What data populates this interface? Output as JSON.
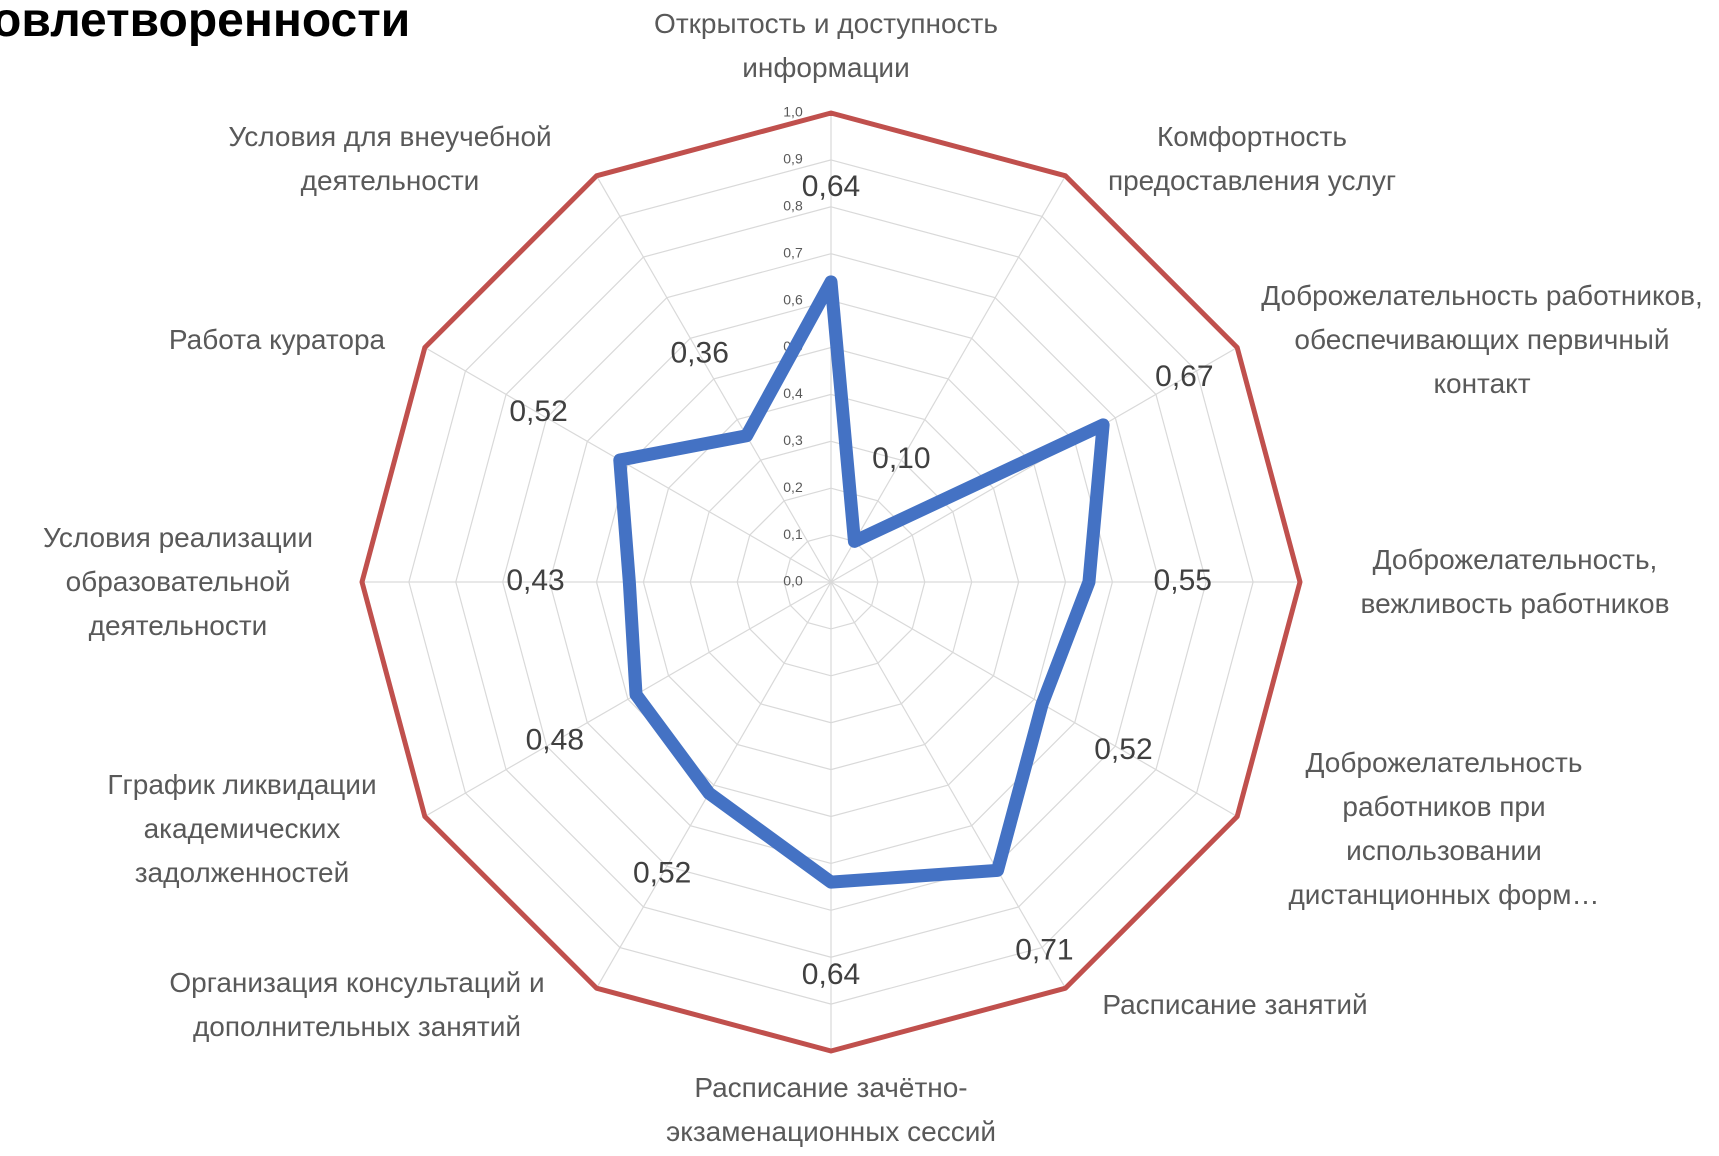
{
  "chart_data": {
    "type": "radar",
    "title": "овлетворенности",
    "categories": [
      "Открытость и доступность информации",
      "Комфортность предоставления услуг",
      "Доброжелательность работников, обеспечивающих первичный контакт",
      "Доброжелательность, вежливость работников",
      "Доброжелательность работников при использовании дистанционных форм…",
      "Расписание занятий",
      "Расписание зачётно-экзаменационных сессий",
      "Организация консультаций и дополнительных занятий",
      "Гграфик ликвидации академических задолженностей",
      "Условия реализации образовательной деятельности",
      "Работа куратора",
      "Условия для внеучебной деятельности"
    ],
    "series": [
      {
        "color": "#4472c4",
        "values": [
          0.64,
          0.1,
          0.67,
          0.55,
          0.52,
          0.71,
          0.64,
          0.52,
          0.48,
          0.43,
          0.52,
          0.36
        ],
        "value_labels": [
          "0,64",
          "0,10",
          "0,67",
          "0,55",
          "0,52",
          "0,71",
          "0,64",
          "0,52",
          "0,48",
          "0,43",
          "0,52",
          "0,36"
        ]
      },
      {
        "color": "#c0504d",
        "values": [
          1,
          1,
          1,
          1,
          1,
          1,
          1,
          1,
          1,
          1,
          1,
          1
        ]
      }
    ],
    "ylim": [
      0,
      1
    ],
    "yticks": [
      {
        "value": 0,
        "label": "0,0"
      },
      {
        "value": 0.1,
        "label": "0,1"
      },
      {
        "value": 0.2,
        "label": "0,2"
      },
      {
        "value": 0.3,
        "label": "0,3"
      },
      {
        "value": 0.4,
        "label": "0,4"
      },
      {
        "value": 0.5,
        "label": "0,5"
      },
      {
        "value": 0.6,
        "label": "0,6"
      },
      {
        "value": 0.7,
        "label": "0,7"
      },
      {
        "value": 0.8,
        "label": "0,8"
      },
      {
        "value": 0.9,
        "label": "0,9"
      },
      {
        "value": 1,
        "label": "1,0"
      }
    ],
    "grid": true
  }
}
